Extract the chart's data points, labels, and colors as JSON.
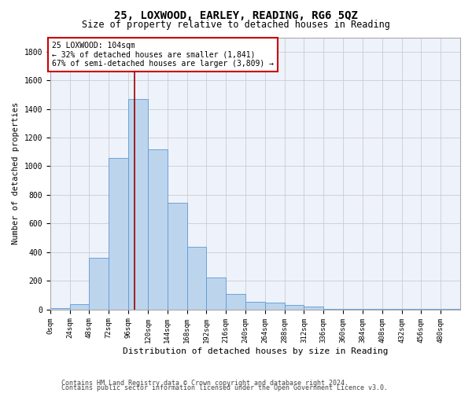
{
  "title": "25, LOXWOOD, EARLEY, READING, RG6 5QZ",
  "subtitle": "Size of property relative to detached houses in Reading",
  "xlabel": "Distribution of detached houses by size in Reading",
  "ylabel": "Number of detached properties",
  "bar_color": "#bdd4ed",
  "bar_edge_color": "#5b9bd5",
  "bar_values": [
    10,
    35,
    360,
    1060,
    1470,
    1120,
    745,
    435,
    225,
    110,
    55,
    45,
    30,
    20,
    5,
    5,
    3,
    2,
    1,
    1,
    1
  ],
  "bin_edges": [
    0,
    24,
    48,
    72,
    96,
    120,
    144,
    168,
    192,
    216,
    240,
    264,
    288,
    312,
    336,
    360,
    384,
    408,
    432,
    456,
    480,
    504
  ],
  "tick_labels": [
    "0sqm",
    "24sqm",
    "48sqm",
    "72sqm",
    "96sqm",
    "120sqm",
    "144sqm",
    "168sqm",
    "192sqm",
    "216sqm",
    "240sqm",
    "264sqm",
    "288sqm",
    "312sqm",
    "336sqm",
    "360sqm",
    "384sqm",
    "408sqm",
    "432sqm",
    "456sqm",
    "480sqm"
  ],
  "vline_x": 104,
  "annotation_line1": "25 LOXWOOD: 104sqm",
  "annotation_line2": "← 32% of detached houses are smaller (1,841)",
  "annotation_line3": "67% of semi-detached houses are larger (3,809) →",
  "ylim": [
    0,
    1900
  ],
  "yticks": [
    0,
    200,
    400,
    600,
    800,
    1000,
    1200,
    1400,
    1600,
    1800
  ],
  "footnote1": "Contains HM Land Registry data © Crown copyright and database right 2024.",
  "footnote2": "Contains public sector information licensed under the Open Government Licence v3.0.",
  "grid_color": "#cccccc",
  "background_color": "#eef2fb",
  "vline_color": "#990000",
  "title_fontsize": 10,
  "subtitle_fontsize": 8.5,
  "tick_fontsize": 6.5,
  "ylabel_fontsize": 7.5,
  "xlabel_fontsize": 8,
  "annotation_fontsize": 7,
  "footnote_fontsize": 6
}
